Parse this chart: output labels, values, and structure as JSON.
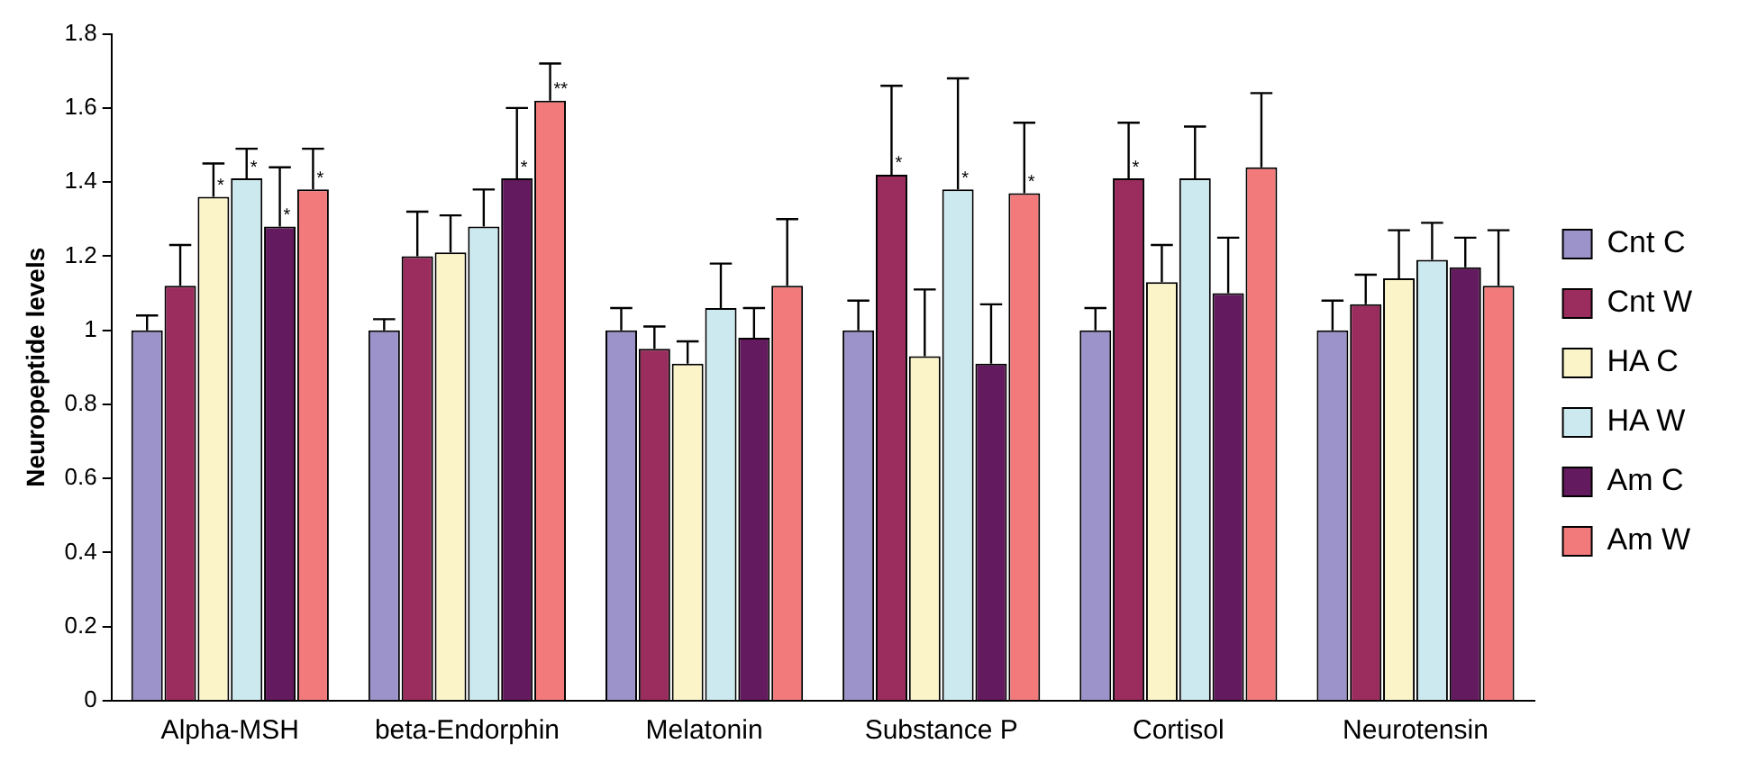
{
  "chart_data": {
    "type": "bar",
    "ylabel": "Neuropeptide levels",
    "categories": [
      "Alpha-MSH",
      "beta-Endorphin",
      "Melatonin",
      "Substance P",
      "Cortisol",
      "Neurotensin"
    ],
    "series": [
      {
        "name": "Cnt C",
        "color": "#9b93c9",
        "values": [
          1.0,
          1.0,
          1.0,
          1.0,
          1.0,
          1.0
        ],
        "errors": [
          [
            1.0,
            1.04
          ],
          [
            1.0,
            1.03
          ],
          [
            1.0,
            1.06
          ],
          [
            1.0,
            1.08
          ],
          [
            1.0,
            1.06
          ],
          [
            1.0,
            1.08
          ]
        ]
      },
      {
        "name": "Cnt W",
        "color": "#9b2c5e",
        "values": [
          1.12,
          1.2,
          0.95,
          1.42,
          1.41,
          1.07
        ],
        "errors": [
          [
            1.12,
            1.23
          ],
          [
            1.2,
            1.32
          ],
          [
            0.95,
            1.01
          ],
          [
            1.42,
            1.66
          ],
          [
            1.41,
            1.56
          ],
          [
            1.07,
            1.15
          ]
        ],
        "value_labels": [
          null,
          null,
          null,
          "*",
          "*",
          null
        ]
      },
      {
        "name": "HA C",
        "color": "#fbf4c8",
        "values": [
          1.36,
          1.21,
          0.91,
          0.93,
          1.13,
          1.14
        ],
        "errors": [
          [
            1.36,
            1.45
          ],
          [
            1.21,
            1.31
          ],
          [
            0.91,
            0.97
          ],
          [
            0.93,
            1.11
          ],
          [
            1.13,
            1.23
          ],
          [
            1.14,
            1.27
          ]
        ],
        "value_labels": [
          "*",
          null,
          null,
          null,
          null,
          null
        ]
      },
      {
        "name": "HA W",
        "color": "#cde9f0",
        "values": [
          1.41,
          1.28,
          1.06,
          1.38,
          1.41,
          1.19
        ],
        "errors": [
          [
            1.41,
            1.49
          ],
          [
            1.28,
            1.38
          ],
          [
            1.06,
            1.18
          ],
          [
            1.38,
            1.68
          ],
          [
            1.41,
            1.55
          ],
          [
            1.19,
            1.29
          ]
        ],
        "value_labels": [
          "*",
          null,
          null,
          "*",
          null,
          null
        ]
      },
      {
        "name": "Am C",
        "color": "#641a5e",
        "values": [
          1.28,
          1.41,
          0.98,
          0.91,
          1.1,
          1.17
        ],
        "errors": [
          [
            1.28,
            1.44
          ],
          [
            1.41,
            1.6
          ],
          [
            0.98,
            1.06
          ],
          [
            0.91,
            1.07
          ],
          [
            1.1,
            1.25
          ],
          [
            1.17,
            1.25
          ]
        ],
        "value_labels": [
          "*",
          "*",
          null,
          null,
          null,
          null
        ]
      },
      {
        "name": "Am W",
        "color": "#f27a7a",
        "values": [
          1.38,
          1.62,
          1.12,
          1.37,
          1.44,
          1.12
        ],
        "errors": [
          [
            1.38,
            1.49
          ],
          [
            1.62,
            1.72
          ],
          [
            1.12,
            1.3
          ],
          [
            1.37,
            1.56
          ],
          [
            1.44,
            1.64
          ],
          [
            1.12,
            1.27
          ]
        ],
        "value_labels": [
          "*",
          "**",
          null,
          "*",
          null,
          null
        ]
      }
    ],
    "ylim": [
      0,
      1.8
    ],
    "yticks": [
      0,
      0.2,
      0.4,
      0.6,
      0.8,
      1,
      1.2,
      1.4,
      1.6,
      1.8
    ],
    "grid": false,
    "legend": "right"
  }
}
